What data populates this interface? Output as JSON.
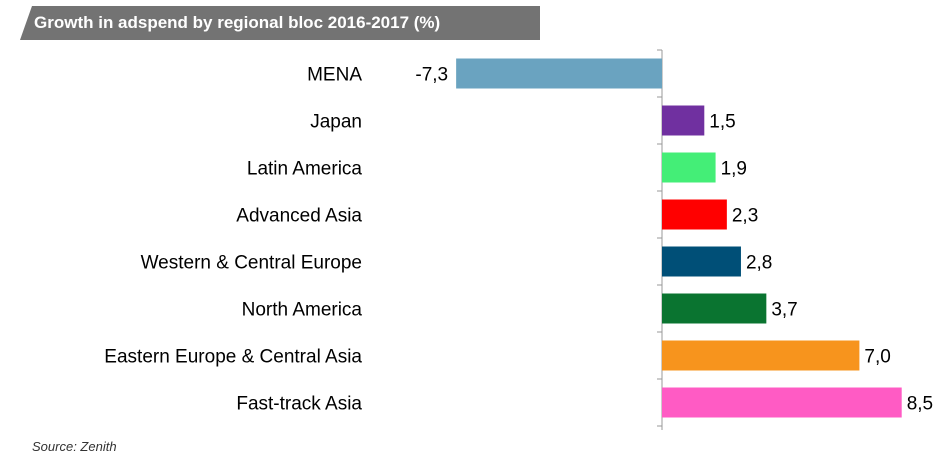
{
  "chart_data": {
    "type": "bar",
    "orientation": "horizontal",
    "title": "Growth in adspend by regional bloc 2016-2017 (%)",
    "categories": [
      "MENA",
      "Japan",
      "Latin America",
      "Advanced Asia",
      "Western & Central Europe",
      "North America",
      "Eastern Europe & Central Asia",
      "Fast-track Asia"
    ],
    "values": [
      -7.3,
      1.5,
      1.9,
      2.3,
      2.8,
      3.7,
      7.0,
      8.5
    ],
    "value_labels": [
      "-7,3",
      "1,5",
      "1,9",
      "2,3",
      "2,8",
      "3,7",
      "7,0",
      "8,5"
    ],
    "colors": [
      "#6aa3c0",
      "#7030a0",
      "#44ee77",
      "#ff0000",
      "#004f77",
      "#0a7430",
      "#f7941d",
      "#ff5bc4"
    ],
    "grid": false,
    "legend": "none"
  },
  "source": "Source: Zenith"
}
